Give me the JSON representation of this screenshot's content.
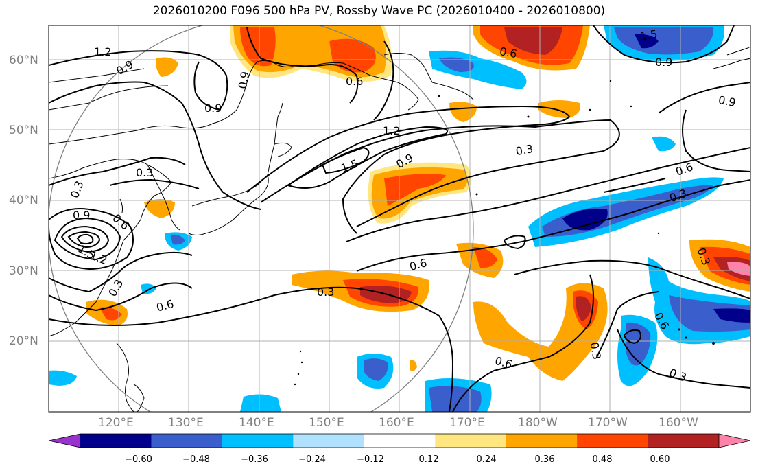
{
  "title": "2026010200 F096 500 hPa PV, Rossby Wave PC (2026010400 - 2026010800)",
  "map": {
    "lon_range": [
      110,
      210
    ],
    "lat_range": [
      10,
      65
    ],
    "lat_labels": [
      "20°N",
      "30°N",
      "40°N",
      "50°N",
      "60°N"
    ],
    "lon_labels": [
      "120°E",
      "130°E",
      "140°E",
      "150°E",
      "160°E",
      "170°E",
      "180°W",
      "170°W",
      "160°W"
    ],
    "gridlines": true
  },
  "colorbar": {
    "ticks": [
      "−0.60",
      "−0.48",
      "−0.36",
      "−0.24",
      "−0.12",
      "0.12",
      "0.24",
      "0.36",
      "0.48",
      "0.60"
    ],
    "colors": [
      "#9a32cd",
      "#00008b",
      "#3a5fcd",
      "#00bfff",
      "#b0e2ff",
      "#ffffff",
      "#ffe680",
      "#ffa500",
      "#ff4500",
      "#b22222",
      "#ff82ab"
    ],
    "extend": "both"
  },
  "contour_labels": [
    "1.2",
    "0.9",
    "0.9",
    "0.6",
    "0.9",
    "1.2",
    "1.5",
    "0.9",
    "0.3",
    "0.9",
    "0.3",
    "0.6",
    "0.3",
    "0.9",
    "0.6",
    "1.5",
    "1.2",
    "0.3",
    "0.6",
    "0.3",
    "0.6",
    "0.6",
    "0.3",
    "0.6",
    "0.3",
    "1.5",
    "0.9",
    "0.3",
    "0.3",
    "0.6"
  ]
}
